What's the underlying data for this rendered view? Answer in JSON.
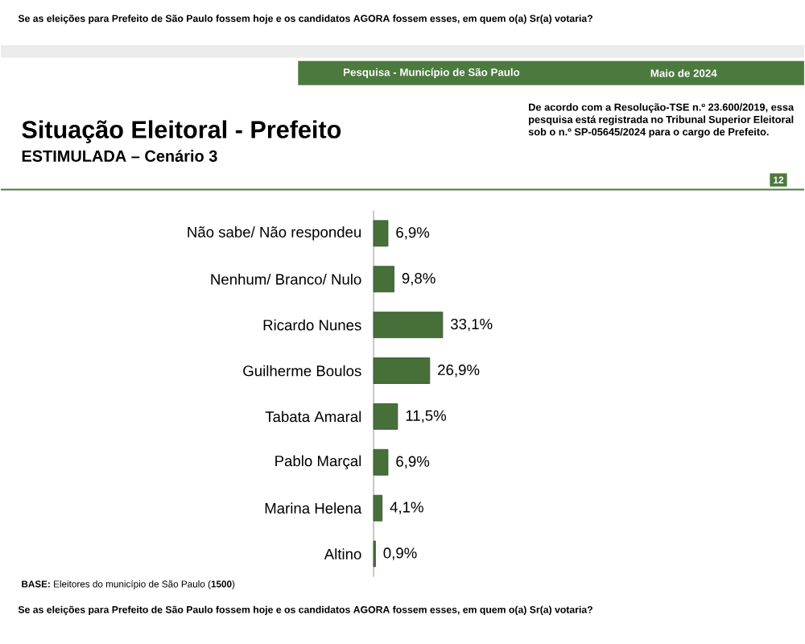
{
  "chart_data": {
    "type": "bar",
    "orientation": "horizontal",
    "title": "Situação Eleitoral - Prefeito",
    "subtitle": "ESTIMULADA – Cenário 3",
    "categories": [
      "Não sabe/ Não respondeu",
      "Nenhum/ Branco/ Nulo",
      "Ricardo Nunes",
      "Guilherme Boulos",
      "Tabata Amaral",
      "Pablo Marçal",
      "Marina Helena",
      "Altino"
    ],
    "values": [
      6.9,
      9.8,
      33.1,
      26.9,
      11.5,
      6.9,
      4.1,
      0.9
    ],
    "value_labels": [
      "6,9%",
      "9,8%",
      "33,1%",
      "26,9%",
      "11,5%",
      "6,9%",
      "4,1%",
      "0,9%"
    ],
    "color": "#466f3a",
    "annotations": [
      "Se as eleições para Prefeito de São Paulo fossem hoje e os candidatos AGORA fossem esses, em quem o(a) Sr(a) votaria?",
      "Pesquisa - Município de São Paulo",
      "Maio de 2024",
      "De acordo com a Resolução-TSE n.º 23.600/2019, essa pesquisa está registrada no Tribunal Superior Eleitoral sob o n.º SP-05645/2024 para o cargo de Prefeito.",
      "12",
      "**BASE:** Eleitores do município de São Paulo (**1500**)",
      "Se as eleições para Prefeito de São Paulo fossem hoje e os candidatos AGORA fossem esses, em quem o(a) Sr(a) votaria?"
    ]
  }
}
